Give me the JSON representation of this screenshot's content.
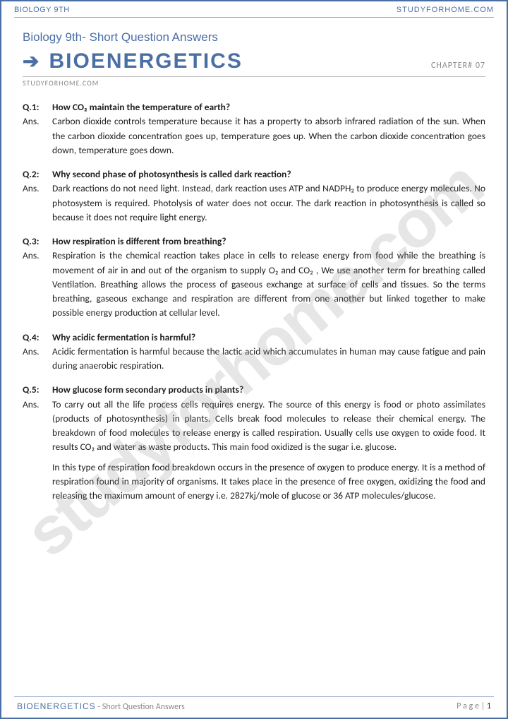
{
  "header": {
    "left": "BIOLOGY 9TH",
    "right": "STUDYFORHOME.COM"
  },
  "subtitle": "Biology 9th- Short Question Answers",
  "title": "BIOENERGETICS",
  "chapter": "CHAPTER# 07",
  "site_small": "STUDYFORHOME.COM",
  "watermark": "studyforhome.com",
  "questions": [
    {
      "qnum": "Q.1:",
      "q": "How CO₂ maintain the temperature of earth?",
      "a": [
        "Carbon dioxide controls temperature because it has a property to absorb infrared radiation of the sun. When the carbon dioxide concentration goes up, temperature goes up. When the carbon dioxide concentration goes down, temperature goes down."
      ]
    },
    {
      "qnum": "Q.2:",
      "q": "Why second phase of photosynthesis is called dark reaction?",
      "a": [
        "Dark reactions do not need light. Instead, dark reaction uses ATP and NADPH₂ to produce energy molecules. No photosystem is required. Photolysis of water does not occur. The dark reaction in photosynthesis is called so because it does not require light energy."
      ]
    },
    {
      "qnum": "Q.3:",
      "q": "How respiration is different from breathing?",
      "a": [
        "Respiration is the chemical reaction takes place in cells to release energy from food while the breathing is movement of air in and out of the organism to supply O₂ and CO₂ , We use another term for breathing called Ventilation. Breathing allows the process of gaseous exchange at surface of cells and tissues. So the terms breathing, gaseous exchange and respiration are different from one another but linked together to make possible energy production at cellular level."
      ]
    },
    {
      "qnum": "Q.4:",
      "q": "Why acidic fermentation is harmful?",
      "a": [
        "Acidic fermentation is harmful because the lactic acid which accumulates in human may cause fatigue and pain during anaerobic respiration."
      ]
    },
    {
      "qnum": "Q.5:",
      "q": "How glucose form secondary products in plants?",
      "a": [
        "To carry out all the life process cells requires energy. The source of this energy is food or photo assimilates (products of photosynthesis) in plants. Cells break food molecules to release their chemical energy. The breakdown of food molecules to release energy is called respiration. Usually cells use oxygen to oxide food. It results CO₂ and water as waste products. This main food oxidized is the sugar i.e. glucose.",
        "In this type of respiration food breakdown occurs in the presence of oxygen to produce energy. It is a method of respiration found in majority of organisms. It takes place in the presence of free oxygen, oxidizing the food and releasing the maximum amount of energy i.e. 2827kj/mole of glucose or 36 ATP molecules/glucose."
      ]
    }
  ],
  "footer": {
    "title": "BIOENERGETICS",
    "sub": " - Short Question Answers",
    "page_label": "P a g e ",
    "page_sep": "| ",
    "page_num": "1"
  },
  "labels": {
    "ans": "Ans."
  }
}
